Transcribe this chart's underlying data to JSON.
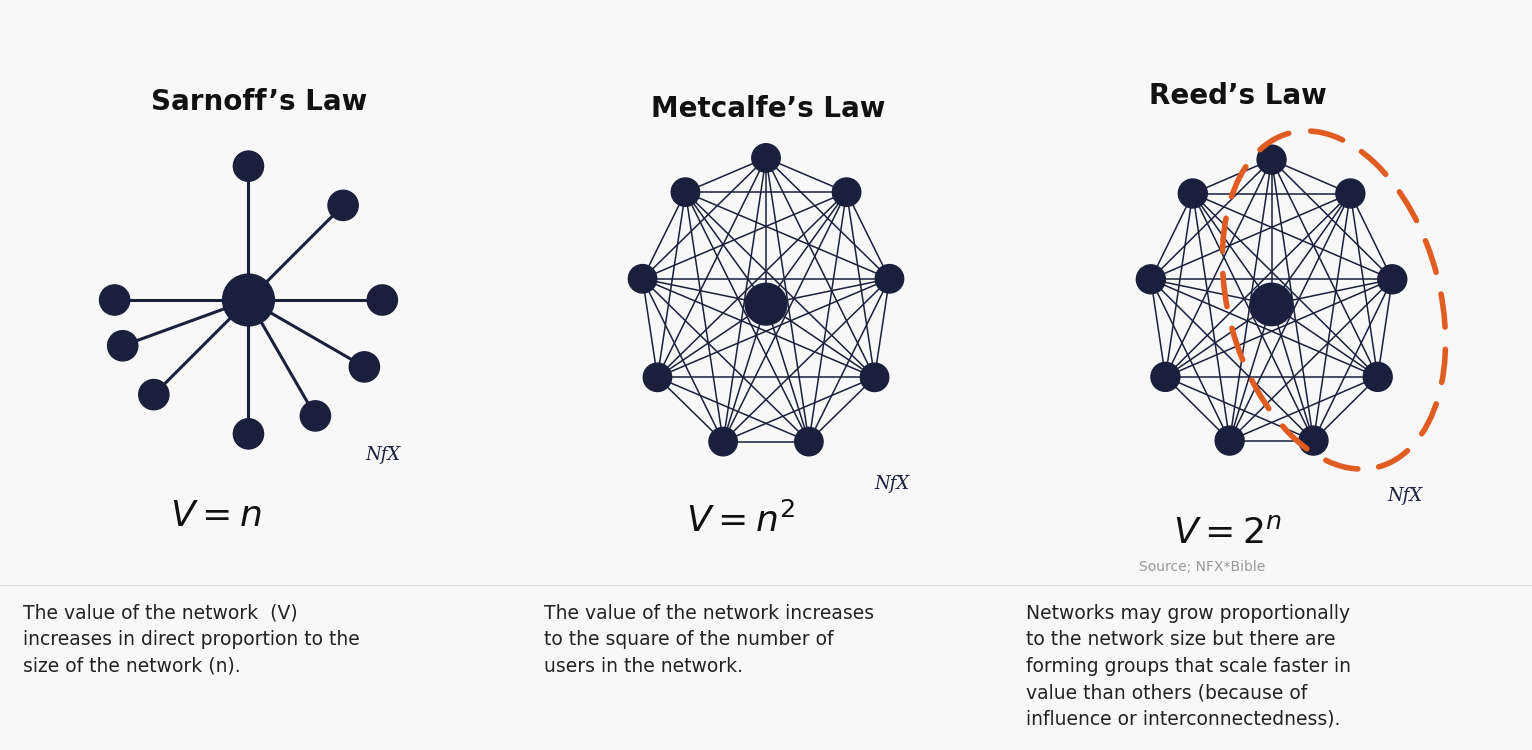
{
  "bg_color": "#f8f8f8",
  "node_color": "#1a1f3c",
  "edge_color": "#1a1f3c",
  "dashed_color": "#e05c20",
  "title1": "Sarnoff’s Law",
  "title2": "Metcalfe’s Law",
  "title3": "Reed’s Law",
  "nfx_label": "NfX",
  "source_label": "Source; NFX*Bible",
  "desc1": "The value of the network  (V)\nincreases in direct proportion to the\nsize of the network (n).",
  "desc2": "The value of the network increases\nto the square of the number of\nusers in the network.",
  "desc3": "Networks may grow proportionally\nto the network size but there are\nforming groups that scale faster in\nvalue than others (because of\ninfluence or interconnectedness).",
  "title_fontsize": 20,
  "formula_fontsize": 26,
  "nfx_fontsize": 13,
  "desc_fontsize": 13.5,
  "source_fontsize": 10
}
